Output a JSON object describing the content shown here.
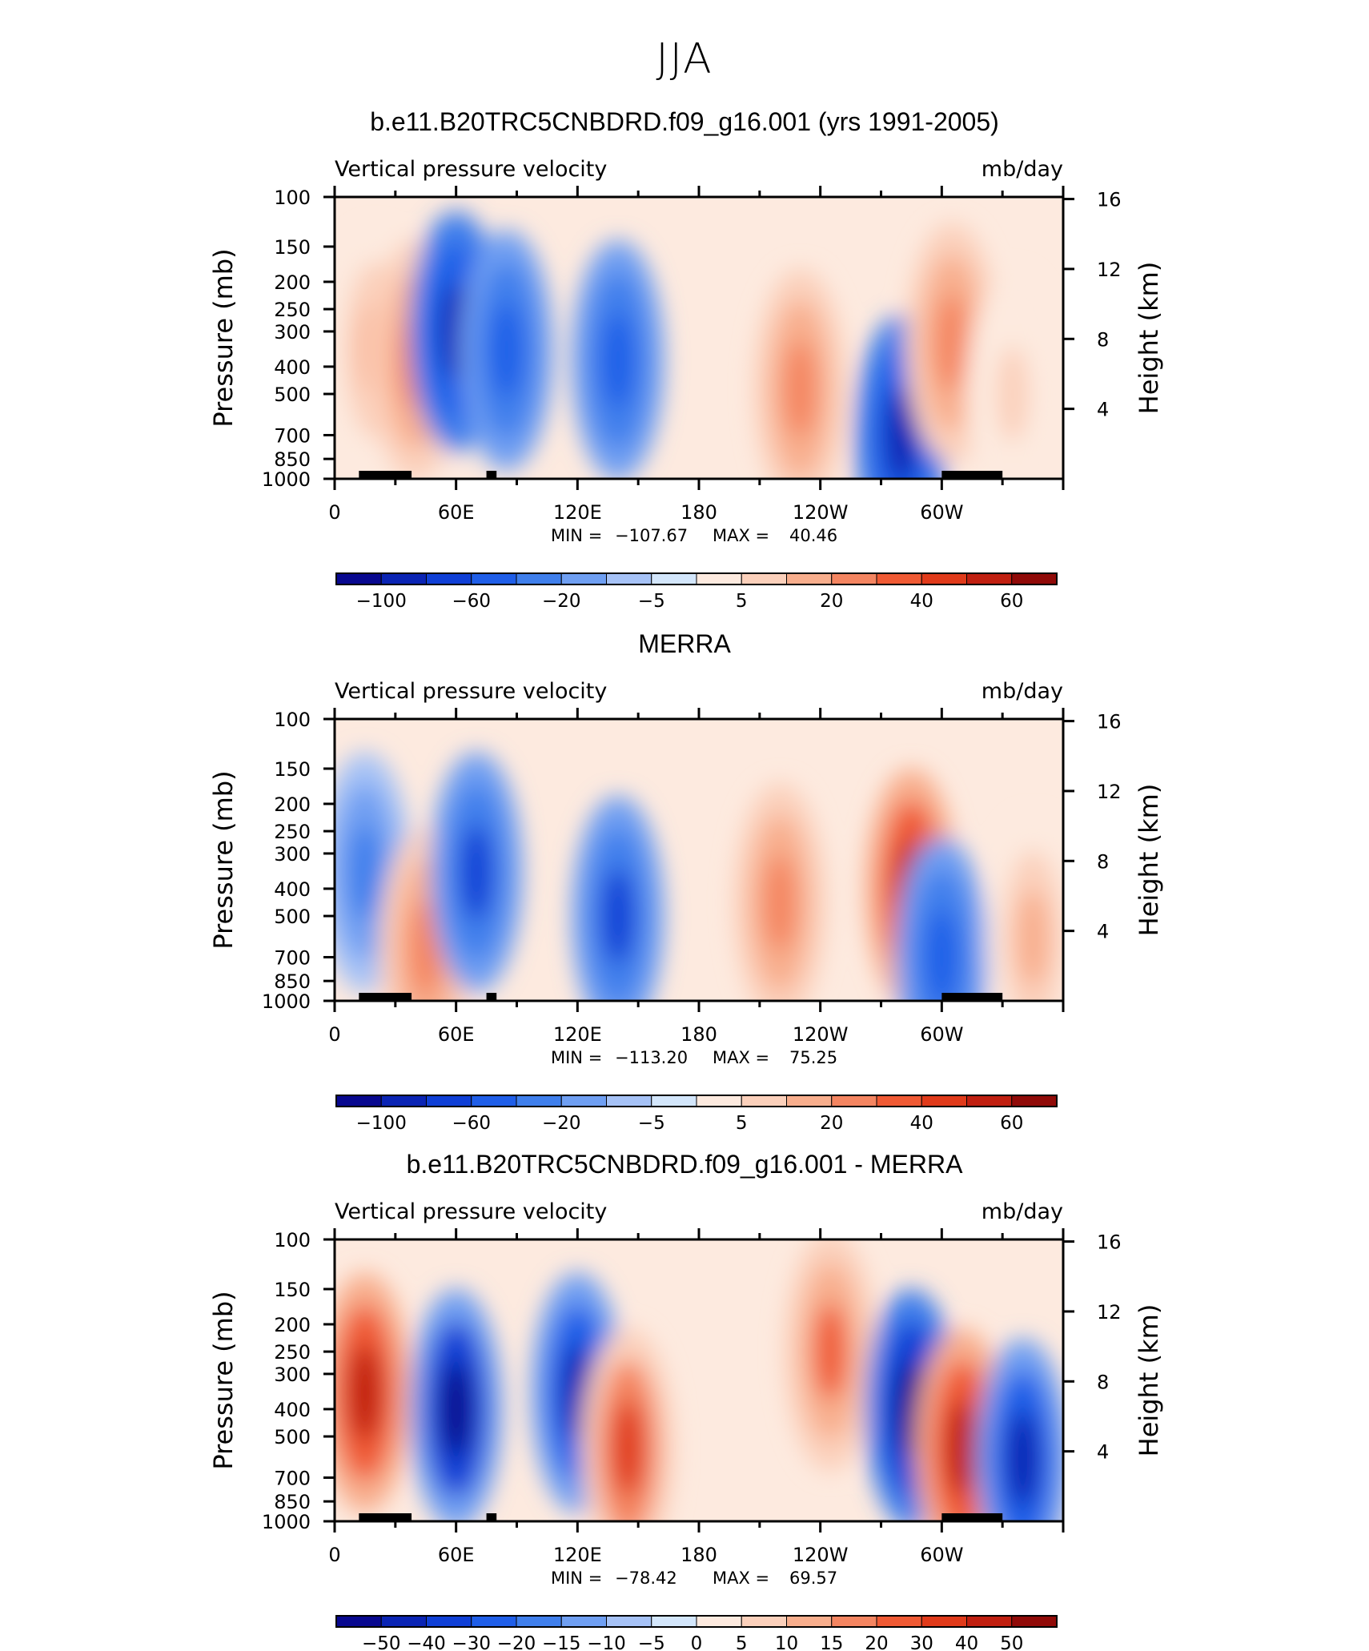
{
  "figure": {
    "title": "JJA"
  },
  "colors": {
    "neg": [
      "#08088f",
      "#0a24b4",
      "#0f3fd6",
      "#1f5ee8",
      "#3f7fec",
      "#6f9ff2",
      "#a6c2f6",
      "#d3e6fb"
    ],
    "pos": [
      "#fdeadf",
      "#fbd0bb",
      "#f8ae8d",
      "#f48561",
      "#f05a34",
      "#e03a1a",
      "#c01f10",
      "#900a08"
    ],
    "topography": "#000000"
  },
  "chart_data": [
    {
      "type": "heatmap",
      "title": "b.e11.B20TRC5CNBDRD.f09_g16.001 (yrs 1991-2005)",
      "subtitle_left": "Vertical pressure velocity",
      "subtitle_right": "mb/day",
      "ylabel": "Pressure (mb)",
      "y2label": "Height (km)",
      "x_ticks": [
        "0",
        "60E",
        "120E",
        "180",
        "120W",
        "60W"
      ],
      "x_range": [
        0,
        360
      ],
      "y_ticks": [
        "100",
        "150",
        "200",
        "250",
        "300",
        "400",
        "500",
        "700",
        "850",
        "1000"
      ],
      "y_range": [
        1000,
        100
      ],
      "y2_ticks": [
        "16",
        "12",
        "8",
        "4"
      ],
      "stats": {
        "min_label": "MIN =",
        "min": "−107.67",
        "max_label": "MAX =",
        "max": "40.46"
      },
      "colorbar_labels": [
        "−100",
        "−60",
        "−20",
        "−5",
        "5",
        "20",
        "40",
        "60"
      ],
      "features": [
        {
          "lon": 20,
          "p": 350,
          "value": 15
        },
        {
          "lon": 40,
          "p": 380,
          "value": 28
        },
        {
          "lon": 60,
          "p": 300,
          "value": -90
        },
        {
          "lon": 85,
          "p": 350,
          "value": -45
        },
        {
          "lon": 140,
          "p": 380,
          "value": -55
        },
        {
          "lon": 230,
          "p": 480,
          "value": 30
        },
        {
          "lon": 280,
          "p": 700,
          "value": -90
        },
        {
          "lon": 305,
          "p": 330,
          "value": 30
        },
        {
          "lon": 335,
          "p": 500,
          "value": 6
        }
      ]
    },
    {
      "type": "heatmap",
      "title": "MERRA",
      "subtitle_left": "Vertical pressure velocity",
      "subtitle_right": "mb/day",
      "ylabel": "Pressure (mb)",
      "y2label": "Height (km)",
      "x_ticks": [
        "0",
        "60E",
        "120E",
        "180",
        "120W",
        "60W"
      ],
      "x_range": [
        0,
        360
      ],
      "y_ticks": [
        "100",
        "150",
        "200",
        "250",
        "300",
        "400",
        "500",
        "700",
        "850",
        "1000"
      ],
      "y_range": [
        1000,
        100
      ],
      "y2_ticks": [
        "16",
        "12",
        "8",
        "4"
      ],
      "stats": {
        "min_label": "MIN =",
        "min": "−113.20",
        "max_label": "MAX =",
        "max": "75.25"
      },
      "colorbar_labels": [
        "−100",
        "−60",
        "−20",
        "−5",
        "5",
        "20",
        "40",
        "60"
      ],
      "features": [
        {
          "lon": 15,
          "p": 350,
          "value": -30
        },
        {
          "lon": 45,
          "p": 650,
          "value": 30
        },
        {
          "lon": 70,
          "p": 350,
          "value": -60
        },
        {
          "lon": 140,
          "p": 500,
          "value": -70
        },
        {
          "lon": 220,
          "p": 450,
          "value": 22
        },
        {
          "lon": 285,
          "p": 400,
          "value": 55
        },
        {
          "lon": 300,
          "p": 700,
          "value": -45
        },
        {
          "lon": 345,
          "p": 600,
          "value": 18
        }
      ]
    },
    {
      "type": "heatmap",
      "title": "b.e11.B20TRC5CNBDRD.f09_g16.001 - MERRA",
      "subtitle_left": "Vertical pressure velocity",
      "subtitle_right": "mb/day",
      "ylabel": "Pressure (mb)",
      "y2label": "Height (km)",
      "x_ticks": [
        "0",
        "60E",
        "120E",
        "180",
        "120W",
        "60W"
      ],
      "x_range": [
        0,
        360
      ],
      "y_ticks": [
        "100",
        "150",
        "200",
        "250",
        "300",
        "400",
        "500",
        "700",
        "850",
        "1000"
      ],
      "y_range": [
        1000,
        100
      ],
      "y2_ticks": [
        "16",
        "12",
        "8",
        "4"
      ],
      "stats": {
        "min_label": "MIN =",
        "min": "−78.42",
        "max_label": "MAX =",
        "max": "69.57"
      },
      "colorbar_labels": [
        "−50",
        "−40",
        "−30",
        "−20",
        "−15",
        "−10",
        "−5",
        "0",
        "5",
        "10",
        "15",
        "20",
        "30",
        "40",
        "50"
      ],
      "features": [
        {
          "lon": 15,
          "p": 350,
          "value": 45
        },
        {
          "lon": 60,
          "p": 400,
          "value": -55
        },
        {
          "lon": 120,
          "p": 350,
          "value": -45
        },
        {
          "lon": 145,
          "p": 550,
          "value": 35
        },
        {
          "lon": 245,
          "p": 250,
          "value": 25
        },
        {
          "lon": 285,
          "p": 400,
          "value": -60
        },
        {
          "lon": 310,
          "p": 550,
          "value": 50
        },
        {
          "lon": 340,
          "p": 600,
          "value": -40
        }
      ]
    }
  ]
}
